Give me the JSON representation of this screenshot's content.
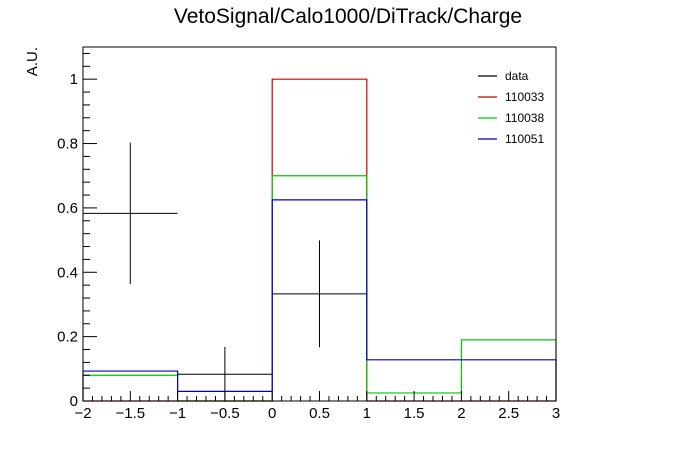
{
  "chart_data": {
    "type": "histogram",
    "title": "VetoSignal/Calo1000/DiTrack/Charge",
    "xlabel": "",
    "ylabel": "A.U.",
    "xlim": [
      -2,
      3
    ],
    "ylim": [
      0,
      1.1
    ],
    "grid": false,
    "legend_position": "top-right",
    "bin_edges": [
      -2,
      -1,
      0,
      1,
      2,
      3
    ],
    "x_ticks": [
      -2,
      -1.5,
      -1,
      -0.5,
      0,
      0.5,
      1,
      1.5,
      2,
      2.5,
      3
    ],
    "x_tick_labels": [
      "−2",
      "−1.5",
      "−1",
      "−0.5",
      "0",
      "0.5",
      "1",
      "1.5",
      "2",
      "2.5",
      "3"
    ],
    "y_ticks": [
      0,
      0.2,
      0.4,
      0.6,
      0.8,
      1
    ],
    "y_tick_labels": [
      "0",
      "0.2",
      "0.4",
      "0.6",
      "0.8",
      "1"
    ],
    "data": {
      "name": "data",
      "color": "#000000",
      "x": [
        -1.5,
        -0.5,
        0.5,
        1.5,
        2.5
      ],
      "y": [
        0.583,
        0.083,
        0.333,
        0,
        0
      ],
      "yerr": [
        0.22,
        0.085,
        0.166,
        0,
        0
      ]
    },
    "series": [
      {
        "name": "110033",
        "color": "#cc0000",
        "values": [
          0,
          0,
          1.0,
          0,
          0
        ]
      },
      {
        "name": "110038",
        "color": "#00cc00",
        "values": [
          0.08,
          0,
          0.7,
          0.025,
          0.19
        ]
      },
      {
        "name": "110051",
        "color": "#0000cc",
        "values": [
          0.093,
          0.03,
          0.625,
          0.128,
          0.128
        ]
      }
    ]
  }
}
